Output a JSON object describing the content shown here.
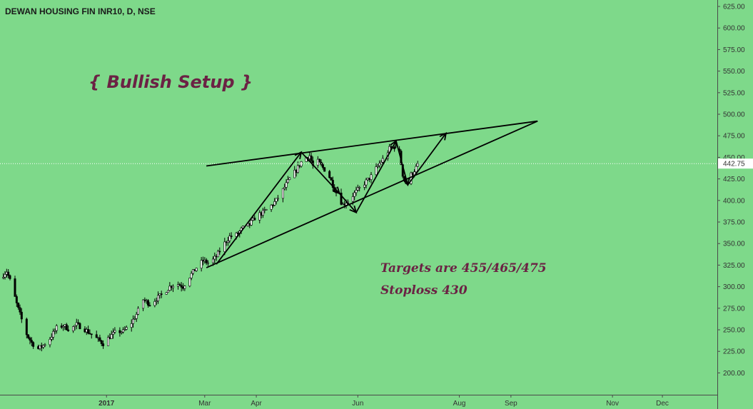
{
  "chart_data": {
    "type": "candlestick",
    "title": "DEWAN HOUSING FIN INR10, D, NSE",
    "annotations": {
      "headline": "{ Bullish Setup }",
      "targets": "Targets are 455/465/475",
      "stoploss": "Stoploss 430"
    },
    "last_price": "442.75",
    "y_ticks": [
      "625.00",
      "600.00",
      "575.00",
      "550.00",
      "525.00",
      "500.00",
      "475.00",
      "450.00",
      "425.00",
      "400.00",
      "375.00",
      "350.00",
      "325.00",
      "300.00",
      "275.00",
      "250.00",
      "225.00",
      "200.00"
    ],
    "y_tick_values": [
      625,
      600,
      575,
      550,
      525,
      500,
      475,
      450,
      425,
      400,
      375,
      350,
      325,
      300,
      275,
      250,
      225,
      200
    ],
    "ylim": [
      178,
      630
    ],
    "x_ticks": [
      {
        "label": "2017",
        "date": "2017-01-01"
      },
      {
        "label": "Mar",
        "date": "2017-03-01"
      },
      {
        "label": "Apr",
        "date": "2017-04-01"
      },
      {
        "label": "Jun",
        "date": "2017-06-01"
      },
      {
        "label": "Aug",
        "date": "2017-08-01"
      },
      {
        "label": "Sep",
        "date": "2017-09-01"
      },
      {
        "label": "Nov",
        "date": "2017-11-01"
      },
      {
        "label": "Dec",
        "date": "2017-12-01"
      }
    ],
    "xlim": [
      "2016-10-29",
      "2018-01-03"
    ],
    "price_path": [
      [
        "2016-10-29",
        310
      ],
      [
        "2016-11-02",
        318
      ],
      [
        "2016-11-05",
        302
      ],
      [
        "2016-11-08",
        280
      ],
      [
        "2016-11-11",
        262
      ],
      [
        "2016-11-14",
        245
      ],
      [
        "2016-11-17",
        235
      ],
      [
        "2016-11-21",
        228
      ],
      [
        "2016-11-24",
        232
      ],
      [
        "2016-11-28",
        240
      ],
      [
        "2016-12-02",
        252
      ],
      [
        "2016-12-06",
        255
      ],
      [
        "2016-12-10",
        250
      ],
      [
        "2016-12-14",
        256
      ],
      [
        "2016-12-18",
        252
      ],
      [
        "2016-12-22",
        246
      ],
      [
        "2016-12-26",
        240
      ],
      [
        "2016-12-30",
        234
      ],
      [
        "2017-01-03",
        242
      ],
      [
        "2017-01-07",
        248
      ],
      [
        "2017-01-11",
        248
      ],
      [
        "2017-01-15",
        255
      ],
      [
        "2017-01-19",
        268
      ],
      [
        "2017-01-23",
        285
      ],
      [
        "2017-01-27",
        280
      ],
      [
        "2017-01-31",
        286
      ],
      [
        "2017-02-04",
        292
      ],
      [
        "2017-02-08",
        300
      ],
      [
        "2017-02-12",
        304
      ],
      [
        "2017-02-16",
        300
      ],
      [
        "2017-02-20",
        312
      ],
      [
        "2017-02-24",
        322
      ],
      [
        "2017-02-28",
        330
      ],
      [
        "2017-03-04",
        327
      ],
      [
        "2017-03-08",
        335
      ],
      [
        "2017-03-12",
        348
      ],
      [
        "2017-03-16",
        358
      ],
      [
        "2017-03-20",
        360
      ],
      [
        "2017-03-24",
        368
      ],
      [
        "2017-03-28",
        372
      ],
      [
        "2017-04-01",
        382
      ],
      [
        "2017-04-05",
        386
      ],
      [
        "2017-04-09",
        392
      ],
      [
        "2017-04-13",
        400
      ],
      [
        "2017-04-17",
        412
      ],
      [
        "2017-04-21",
        425
      ],
      [
        "2017-04-25",
        435
      ],
      [
        "2017-04-29",
        448
      ],
      [
        "2017-05-03",
        452
      ],
      [
        "2017-05-05",
        440
      ],
      [
        "2017-05-08",
        445
      ],
      [
        "2017-05-11",
        438
      ],
      [
        "2017-05-14",
        432
      ],
      [
        "2017-05-17",
        418
      ],
      [
        "2017-05-20",
        405
      ],
      [
        "2017-05-23",
        395
      ],
      [
        "2017-05-26",
        400
      ],
      [
        "2017-05-29",
        406
      ],
      [
        "2017-06-01",
        412
      ],
      [
        "2017-06-05",
        420
      ],
      [
        "2017-06-09",
        428
      ],
      [
        "2017-06-13",
        440
      ],
      [
        "2017-06-17",
        450
      ],
      [
        "2017-06-20",
        460
      ],
      [
        "2017-06-23",
        462
      ],
      [
        "2017-06-26",
        455
      ],
      [
        "2017-06-28",
        430
      ],
      [
        "2017-06-30",
        420
      ],
      [
        "2017-07-02",
        428
      ],
      [
        "2017-07-04",
        432
      ],
      [
        "2017-07-06",
        438
      ],
      [
        "2017-07-08",
        442.75
      ]
    ],
    "trendlines": [
      {
        "name": "upper",
        "from": [
          "2017-03-02",
          440
        ],
        "to": [
          "2017-09-17",
          492
        ]
      },
      {
        "name": "lower",
        "from": [
          "2017-03-02",
          322
        ],
        "to": [
          "2017-09-17",
          492
        ]
      }
    ],
    "arrows": [
      {
        "from": [
          "2017-03-08",
          326
        ],
        "to": [
          "2017-04-28",
          456
        ]
      },
      {
        "from": [
          "2017-04-28",
          456
        ],
        "to": [
          "2017-05-21",
          408
        ]
      },
      {
        "from": [
          "2017-05-21",
          408
        ],
        "to": [
          "2017-05-31",
          386
        ]
      },
      {
        "from": [
          "2017-05-31",
          386
        ],
        "to": [
          "2017-06-24",
          469
        ]
      },
      {
        "from": [
          "2017-06-24",
          469
        ],
        "to": [
          "2017-07-01",
          418
        ]
      },
      {
        "from": [
          "2017-07-01",
          418
        ],
        "to": [
          "2017-07-24",
          478
        ]
      }
    ]
  }
}
